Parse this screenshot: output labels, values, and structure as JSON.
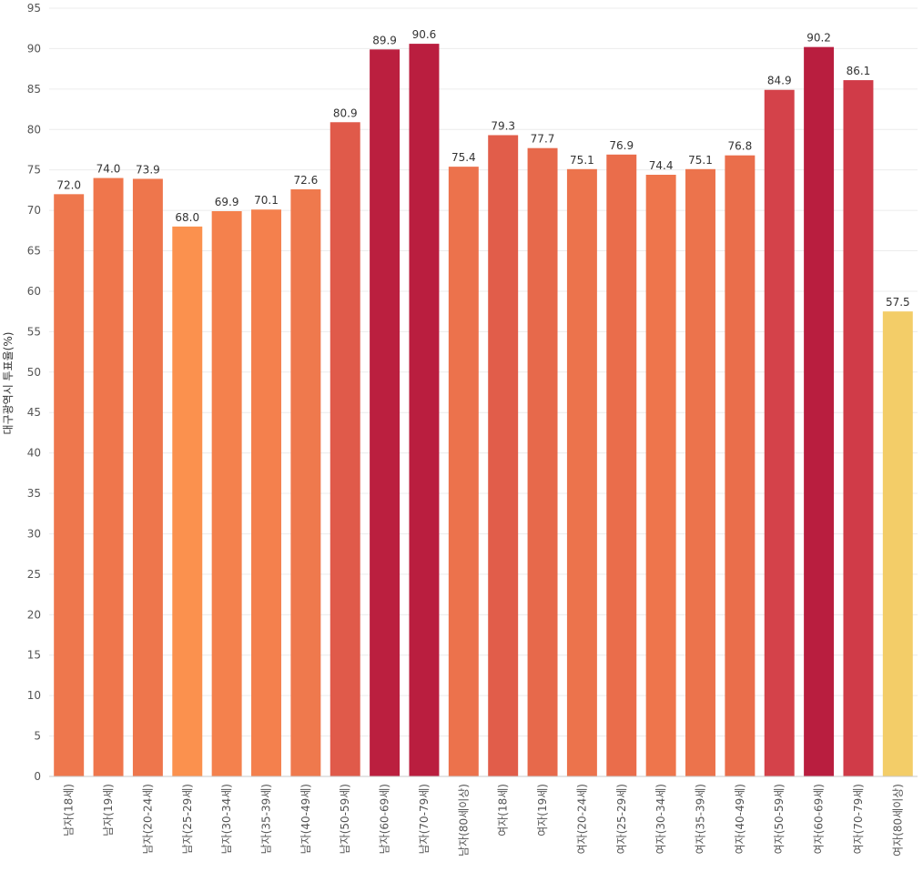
{
  "chart_data": {
    "type": "bar",
    "title": "",
    "xlabel": "",
    "ylabel": "대구광역시 투표율(%)",
    "ylim": [
      0,
      95
    ],
    "yticks": [
      0,
      5,
      10,
      15,
      20,
      25,
      30,
      35,
      40,
      45,
      50,
      55,
      60,
      65,
      70,
      75,
      80,
      85,
      90,
      95
    ],
    "grid": true,
    "categories": [
      "남자(18세)",
      "남자(19세)",
      "남자(20-24세)",
      "남자(25-29세)",
      "남자(30-34세)",
      "남자(35-39세)",
      "남자(40-49세)",
      "남자(50-59세)",
      "남자(60-69세)",
      "남자(70-79세)",
      "남자(80세이상)",
      "여자(18세)",
      "여자(19세)",
      "여자(20-24세)",
      "여자(25-29세)",
      "여자(30-34세)",
      "여자(35-39세)",
      "여자(40-49세)",
      "여자(50-59세)",
      "여자(60-69세)",
      "여자(70-79세)",
      "여자(80세이상)"
    ],
    "values": [
      72.0,
      74.0,
      73.9,
      68.0,
      69.9,
      70.1,
      72.6,
      80.9,
      89.9,
      90.6,
      75.4,
      79.3,
      77.7,
      75.1,
      76.9,
      74.4,
      75.1,
      76.8,
      84.9,
      90.2,
      86.1,
      57.5
    ],
    "value_labels": [
      "72.0",
      "74.0",
      "73.9",
      "68.0",
      "69.9",
      "70.1",
      "72.6",
      "80.9",
      "89.9",
      "90.6",
      "75.4",
      "79.3",
      "77.7",
      "75.1",
      "76.9",
      "74.4",
      "75.1",
      "76.8",
      "84.9",
      "90.2",
      "86.1",
      "57.5"
    ],
    "bar_colors": [
      "#ee774d",
      "#ef764c",
      "#ee764c",
      "#fb914e",
      "#f4814d",
      "#f4804d",
      "#ef794d",
      "#e05a4a",
      "#bb1f3f",
      "#ba1e3f",
      "#ec724c",
      "#e15d4a",
      "#e7694b",
      "#ec734c",
      "#ea6d4b",
      "#ee754c",
      "#ec734c",
      "#ea6e4b",
      "#d4424a",
      "#b91e3f",
      "#d03b48",
      "#f3cd68"
    ]
  }
}
